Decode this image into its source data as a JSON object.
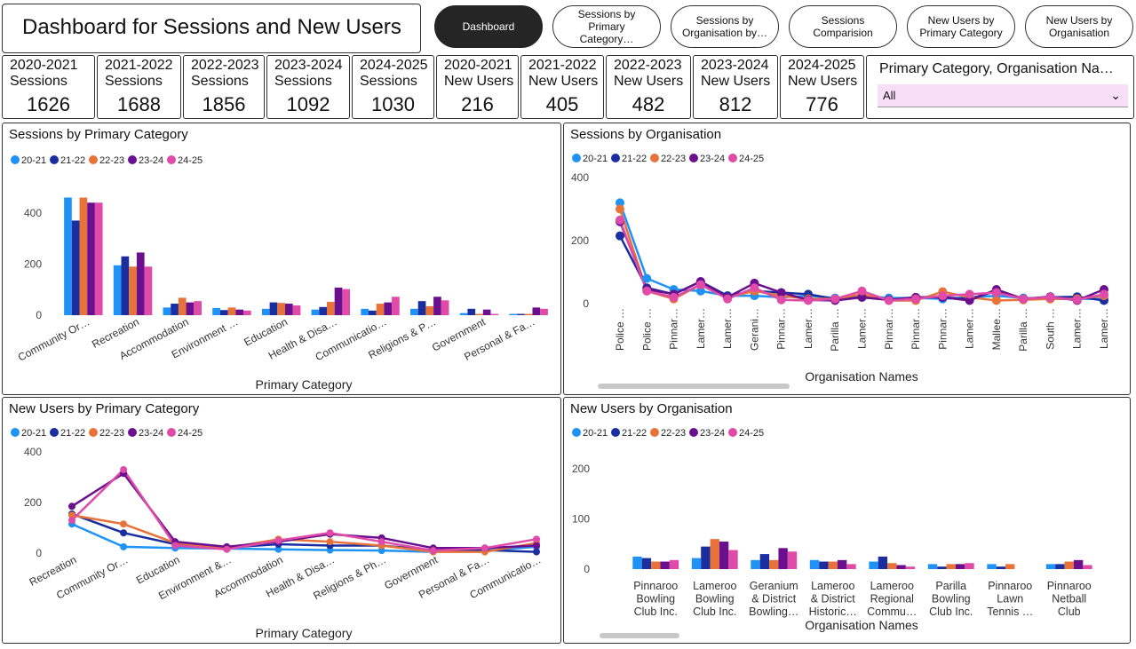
{
  "header": {
    "title": "Dashboard for Sessions and New Users"
  },
  "nav": [
    {
      "label": "Dashboard",
      "active": true
    },
    {
      "label": "Sessions by Primary Category…",
      "active": false
    },
    {
      "label": "Sessions by Organisation by…",
      "active": false
    },
    {
      "label": "Sessions Comparision",
      "active": false
    },
    {
      "label": "New Users by Primary Category",
      "active": false
    },
    {
      "label": "New Users by Organisation",
      "active": false
    }
  ],
  "kpis": [
    {
      "label": "2020-2021\nSessions",
      "value": "1626"
    },
    {
      "label": "2021-2022\nSessions",
      "value": "1688"
    },
    {
      "label": "2022-2023\nSessions",
      "value": "1856"
    },
    {
      "label": "2023-2024\nSessions",
      "value": "1092"
    },
    {
      "label": "2024-2025\nSessions",
      "value": "1030"
    },
    {
      "label": "2020-2021\nNew Users",
      "value": "216"
    },
    {
      "label": "2021-2022\nNew Users",
      "value": "405"
    },
    {
      "label": "2022-2023\nNew Users",
      "value": "482"
    },
    {
      "label": "2023-2024\nNew Users",
      "value": "812"
    },
    {
      "label": "2024-2025\nNew Users",
      "value": "776"
    }
  ],
  "slicer": {
    "title": "Primary Category, Organisation Na…",
    "value": "All"
  },
  "colors": {
    "20-21": "#1f93f5",
    "21-22": "#1a2ea0",
    "22-23": "#e8733a",
    "23-24": "#6a0f8e",
    "24-25": "#e04aa8"
  },
  "chart_data": [
    {
      "id": "sessions_by_category",
      "type": "bar",
      "title": "Sessions by Primary Category",
      "xlabel": "Primary Category",
      "ylabel": "",
      "ylim": [
        0,
        500
      ],
      "yticks": [
        0,
        200,
        400
      ],
      "categories": [
        "Community Or…",
        "Recreation",
        "Accommodation",
        "Environment …",
        "Education",
        "Health & Disa…",
        "Communicatio…",
        "Religions & P…",
        "Government",
        "Personal & Fa…"
      ],
      "series": [
        {
          "name": "20-21",
          "values": [
            460,
            195,
            30,
            28,
            25,
            22,
            25,
            25,
            8,
            5
          ]
        },
        {
          "name": "21-22",
          "values": [
            370,
            230,
            45,
            20,
            50,
            32,
            18,
            55,
            25,
            5
          ]
        },
        {
          "name": "22-23",
          "values": [
            460,
            190,
            68,
            30,
            48,
            52,
            45,
            35,
            5,
            5
          ]
        },
        {
          "name": "23-24",
          "values": [
            440,
            245,
            50,
            22,
            45,
            108,
            50,
            72,
            22,
            30
          ]
        },
        {
          "name": "24-25",
          "values": [
            440,
            190,
            55,
            18,
            38,
            102,
            72,
            58,
            5,
            25
          ]
        }
      ]
    },
    {
      "id": "sessions_by_org",
      "type": "line",
      "title": "Sessions by Organisation",
      "xlabel": "Organisation Names",
      "ylabel": "",
      "ylim": [
        0,
        400
      ],
      "yticks": [
        0,
        200,
        400
      ],
      "categories": [
        "Police …",
        "Police …",
        "Pinnar…",
        "Lamer…",
        "Lamer…",
        "Gerani…",
        "Pinnar…",
        "Lamer…",
        "Parilla …",
        "Lamer…",
        "Pinnar…",
        "Pinnar…",
        "Pinnar…",
        "Lamer…",
        "Mallee…",
        "Parilla …",
        "South …",
        "Lamer…",
        "Lamer…"
      ],
      "series": [
        {
          "name": "20-21",
          "values": [
            320,
            80,
            45,
            40,
            25,
            25,
            20,
            25,
            18,
            25,
            18,
            18,
            15,
            20,
            25,
            18,
            15,
            15,
            15
          ]
        },
        {
          "name": "21-22",
          "values": [
            215,
            50,
            30,
            70,
            25,
            40,
            35,
            30,
            15,
            20,
            12,
            20,
            20,
            15,
            40,
            15,
            20,
            22,
            10
          ]
        },
        {
          "name": "22-23",
          "values": [
            300,
            40,
            15,
            60,
            20,
            40,
            25,
            15,
            15,
            30,
            10,
            10,
            38,
            20,
            10,
            12,
            15,
            15,
            25
          ]
        },
        {
          "name": "23-24",
          "values": [
            260,
            45,
            30,
            70,
            20,
            65,
            35,
            12,
            10,
            20,
            12,
            20,
            20,
            10,
            45,
            15,
            22,
            10,
            45
          ]
        },
        {
          "name": "24-25",
          "values": [
            265,
            40,
            20,
            60,
            15,
            50,
            12,
            10,
            15,
            40,
            10,
            15,
            25,
            30,
            35,
            15,
            20,
            12,
            30
          ]
        }
      ]
    },
    {
      "id": "new_users_by_category",
      "type": "line",
      "title": "New Users by Primary Category",
      "xlabel": "Primary Category",
      "ylabel": "",
      "ylim": [
        0,
        400
      ],
      "yticks": [
        0,
        200,
        400
      ],
      "categories": [
        "Recreation",
        "Community Or…",
        "Education",
        "Environment &…",
        "Accommodation",
        "Health & Disa…",
        "Religions & Ph…",
        "Government",
        "Personal & Fa…",
        "Communicatio…"
      ],
      "series": [
        {
          "name": "20-21",
          "values": [
            115,
            25,
            20,
            18,
            15,
            12,
            10,
            5,
            10,
            25
          ]
        },
        {
          "name": "21-22",
          "values": [
            155,
            80,
            35,
            22,
            35,
            30,
            30,
            12,
            12,
            5
          ]
        },
        {
          "name": "22-23",
          "values": [
            150,
            115,
            40,
            20,
            55,
            45,
            30,
            5,
            5,
            40
          ]
        },
        {
          "name": "23-24",
          "values": [
            185,
            315,
            45,
            25,
            45,
            75,
            60,
            20,
            20,
            30
          ]
        },
        {
          "name": "24-25",
          "values": [
            130,
            330,
            30,
            15,
            50,
            80,
            45,
            10,
            20,
            55
          ]
        }
      ]
    },
    {
      "id": "new_users_by_org",
      "type": "bar",
      "title": "New Users by Organisation",
      "xlabel": "Organisation Names",
      "ylabel": "",
      "ylim": [
        0,
        250
      ],
      "yticks": [
        0,
        100,
        200
      ],
      "categories": [
        "Pinnaroo Bowling Club Inc.",
        "Lameroo Bowling Club Inc.",
        "Geranium & District Bowling…",
        "Lameroo & District Historic…",
        "Lameroo Regional Commu…",
        "Parilla Bowling Club Inc.",
        "Pinnaroo Lawn Tennis …",
        "Pinnaroo Netball Club"
      ],
      "series": [
        {
          "name": "20-21",
          "values": [
            25,
            22,
            18,
            18,
            15,
            10,
            10,
            10
          ]
        },
        {
          "name": "21-22",
          "values": [
            22,
            45,
            30,
            15,
            25,
            5,
            5,
            10
          ]
        },
        {
          "name": "22-23",
          "values": [
            15,
            60,
            18,
            15,
            12,
            10,
            10,
            15
          ]
        },
        {
          "name": "23-24",
          "values": [
            15,
            55,
            42,
            18,
            8,
            10,
            0,
            18
          ]
        },
        {
          "name": "24-25",
          "values": [
            18,
            38,
            35,
            10,
            5,
            12,
            0,
            8
          ]
        }
      ]
    }
  ]
}
